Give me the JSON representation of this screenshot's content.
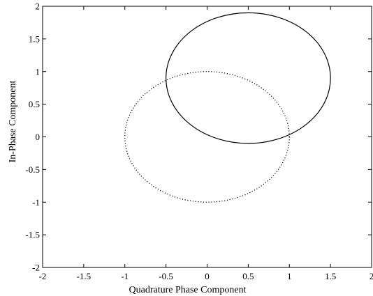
{
  "chart_data": {
    "type": "line",
    "title": "",
    "xlabel": "Quadrature Phase Component",
    "ylabel": "In-Phase Component",
    "xlim": [
      -2,
      2
    ],
    "ylim": [
      -2,
      2
    ],
    "xticks": [
      -2,
      -1.5,
      -1,
      -0.5,
      0,
      0.5,
      1,
      1.5,
      2
    ],
    "yticks": [
      -2,
      -1.5,
      -1,
      -0.5,
      0,
      0.5,
      1,
      1.5,
      2
    ],
    "xtick_labels": [
      "-2",
      "-1.5",
      "-1",
      "-0.5",
      "0",
      "0.5",
      "1",
      "1.5",
      "2"
    ],
    "ytick_labels": [
      "-2",
      "-1.5",
      "-1",
      "-0.5",
      "0",
      "0.5",
      "1",
      "1.5",
      "2"
    ],
    "grid": false,
    "series": [
      {
        "style": "solid",
        "shape": "circle",
        "center": [
          0.5,
          0.9
        ],
        "radius": 1.0
      },
      {
        "style": "dotted",
        "shape": "circle",
        "center": [
          0,
          0
        ],
        "radius": 1.0
      }
    ]
  }
}
